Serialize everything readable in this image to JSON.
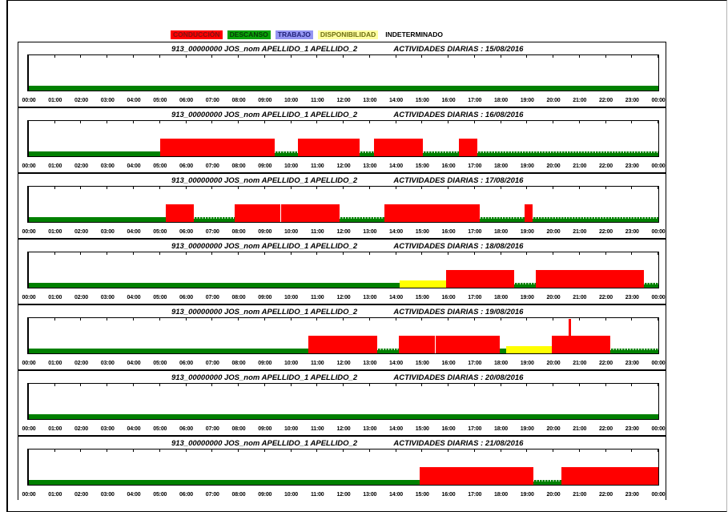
{
  "legend": {
    "items": [
      {
        "key": "conduccion",
        "label": "CONDUCCIÓN",
        "bg": "#ff0000",
        "fg": "#7c1414"
      },
      {
        "key": "descanso",
        "label": "DESCANSO",
        "bg": "#0aa30a",
        "fg": "#073a07"
      },
      {
        "key": "trabajo",
        "label": "TRABAJO",
        "bg": "#9495f2",
        "fg": "#22227a"
      },
      {
        "key": "disponibilidad",
        "label": "DISPONIBILIDAD",
        "bg": "#ffff9e",
        "fg": "#6e6e12"
      },
      {
        "key": "indeterminado",
        "label": "INDETERMINADO",
        "bg": "",
        "fg": "#000000"
      }
    ]
  },
  "colors": {
    "conduccion": "#ff0000",
    "descanso": "#008000",
    "disponibilidad": "#ffff00",
    "trabajo": "#9495f2"
  },
  "chart_data": {
    "type": "bar",
    "subtype": "daily_activity_timeline_gantt",
    "x_axis": {
      "unit": "hours",
      "min": 0,
      "max": 24,
      "tick_labels": [
        "00:00",
        "01:00",
        "02:00",
        "03:00",
        "04:00",
        "05:00",
        "06:00",
        "07:00",
        "08:00",
        "09:00",
        "10:00",
        "11:00",
        "12:00",
        "13:00",
        "14:00",
        "15:00",
        "16:00",
        "17:00",
        "18:00",
        "19:00",
        "20:00",
        "21:00",
        "22:00",
        "23:00",
        "00:00"
      ]
    },
    "activity_heights": {
      "conduccion": 22,
      "descanso": 6,
      "disponibilidad": 9,
      "trabajo": 14,
      "spike": 43
    },
    "days": [
      {
        "date": "15/08/2016",
        "title_left": "913_00000000 JOS_nom APELLIDO_1 APELLIDO_2",
        "title_right": "ACTIVIDADES DIARIAS : 15/08/2016",
        "segments": [
          {
            "activity": "descanso",
            "start": 0,
            "end": 24
          }
        ]
      },
      {
        "date": "16/08/2016",
        "title_left": "913_00000000 JOS_nom APELLIDO_1 APELLIDO_2",
        "title_right": "ACTIVIDADES DIARIAS : 16/08/2016",
        "segments": [
          {
            "activity": "descanso",
            "start": 0,
            "end": 5.0
          },
          {
            "activity": "conduccion",
            "start": 5.0,
            "end": 9.38
          },
          {
            "activity": "descanso",
            "start": 9.38,
            "end": 10.25,
            "dotted": true
          },
          {
            "activity": "conduccion",
            "start": 10.25,
            "end": 12.6
          },
          {
            "activity": "descanso",
            "start": 12.6,
            "end": 13.17,
            "dotted": true
          },
          {
            "activity": "conduccion",
            "start": 13.17,
            "end": 15.03
          },
          {
            "activity": "descanso",
            "start": 15.03,
            "end": 16.4,
            "dotted": true
          },
          {
            "activity": "conduccion",
            "start": 16.4,
            "end": 17.1
          },
          {
            "activity": "descanso",
            "start": 17.1,
            "end": 24,
            "dotted": true
          }
        ]
      },
      {
        "date": "17/08/2016",
        "title_left": "913_00000000 JOS_nom APELLIDO_1 APELLIDO_2",
        "title_right": "ACTIVIDADES DIARIAS : 17/08/2016",
        "segments": [
          {
            "activity": "descanso",
            "start": 0,
            "end": 5.22
          },
          {
            "activity": "conduccion",
            "start": 5.22,
            "end": 6.28
          },
          {
            "activity": "descanso",
            "start": 6.28,
            "end": 7.84,
            "dotted": true
          },
          {
            "activity": "conduccion",
            "start": 7.84,
            "end": 9.58
          },
          {
            "activity": "conduccion",
            "start": 9.63,
            "end": 11.85
          },
          {
            "activity": "descanso",
            "start": 11.85,
            "end": 13.56,
            "dotted": true
          },
          {
            "activity": "conduccion",
            "start": 13.56,
            "end": 17.2
          },
          {
            "activity": "descanso",
            "start": 17.2,
            "end": 18.9,
            "dotted": true
          },
          {
            "activity": "conduccion",
            "start": 18.9,
            "end": 19.2
          },
          {
            "activity": "descanso",
            "start": 19.2,
            "end": 24,
            "dotted": true
          }
        ]
      },
      {
        "date": "18/08/2016",
        "title_left": "913_00000000 JOS_nom APELLIDO_1 APELLIDO_2",
        "title_right": "ACTIVIDADES DIARIAS : 18/08/2016",
        "segments": [
          {
            "activity": "descanso",
            "start": 0,
            "end": 14.13
          },
          {
            "activity": "disponibilidad",
            "start": 14.13,
            "end": 15.92
          },
          {
            "activity": "conduccion",
            "start": 15.92,
            "end": 18.5
          },
          {
            "activity": "descanso",
            "start": 18.5,
            "end": 19.33,
            "dotted": true
          },
          {
            "activity": "conduccion",
            "start": 19.33,
            "end": 23.45
          },
          {
            "activity": "descanso",
            "start": 23.45,
            "end": 24,
            "dotted": true
          }
        ]
      },
      {
        "date": "19/08/2016",
        "title_left": "913_00000000 JOS_nom APELLIDO_1 APELLIDO_2",
        "title_right": "ACTIVIDADES DIARIAS : 19/08/2016",
        "segments": [
          {
            "activity": "descanso",
            "start": 0,
            "end": 10.67
          },
          {
            "activity": "conduccion",
            "start": 10.67,
            "end": 13.27
          },
          {
            "activity": "descanso",
            "start": 13.27,
            "end": 14.1,
            "dotted": true
          },
          {
            "activity": "conduccion",
            "start": 14.1,
            "end": 15.47
          },
          {
            "activity": "conduccion",
            "start": 15.52,
            "end": 17.95
          },
          {
            "activity": "descanso",
            "start": 17.95,
            "end": 18.2
          },
          {
            "activity": "disponibilidad",
            "start": 18.2,
            "end": 19.93
          },
          {
            "activity": "conduccion",
            "start": 19.93,
            "end": 22.17
          },
          {
            "activity": "conduccion",
            "start": 20.58,
            "end": 20.66,
            "spike": true
          },
          {
            "activity": "descanso",
            "start": 22.17,
            "end": 24,
            "dotted": true
          }
        ]
      },
      {
        "date": "20/08/2016",
        "title_left": "913_00000000 JOS_nom APELLIDO_1 APELLIDO_2",
        "title_right": "ACTIVIDADES DIARIAS : 20/08/2016",
        "segments": [
          {
            "activity": "descanso",
            "start": 0,
            "end": 24
          }
        ]
      },
      {
        "date": "21/08/2016",
        "title_left": "913_00000000 JOS_nom APELLIDO_1 APELLIDO_2",
        "title_right": "ACTIVIDADES DIARIAS : 21/08/2016",
        "segments": [
          {
            "activity": "descanso",
            "start": 0,
            "end": 14.9
          },
          {
            "activity": "conduccion",
            "start": 14.9,
            "end": 19.25
          },
          {
            "activity": "descanso",
            "start": 19.25,
            "end": 20.3,
            "dotted": true
          },
          {
            "activity": "conduccion",
            "start": 20.3,
            "end": 24
          }
        ]
      }
    ]
  }
}
